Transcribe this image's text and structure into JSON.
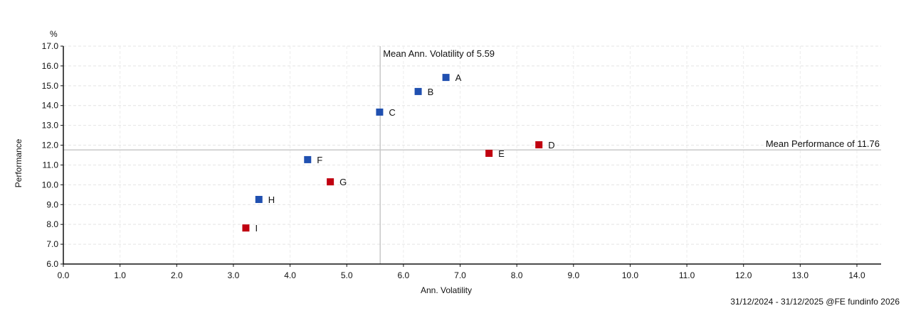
{
  "chart_data": {
    "type": "scatter",
    "title": "",
    "xlabel": "Ann. Volatility",
    "ylabel": "Performance",
    "y_unit": "%",
    "xlim": [
      0,
      14.4
    ],
    "ylim": [
      6,
      17
    ],
    "x_ticks": [
      "0.0",
      "1.0",
      "2.0",
      "3.0",
      "4.0",
      "5.0",
      "6.0",
      "7.0",
      "8.0",
      "9.0",
      "10.0",
      "11.0",
      "12.0",
      "13.0",
      "14.0"
    ],
    "y_ticks": [
      "6.0",
      "7.0",
      "8.0",
      "9.0",
      "10.0",
      "11.0",
      "12.0",
      "13.0",
      "14.0",
      "15.0",
      "16.0",
      "17.0"
    ],
    "grid": true,
    "points": [
      {
        "label": "A",
        "x": 6.75,
        "y": 15.42,
        "color": "#2050b0"
      },
      {
        "label": "B",
        "x": 6.26,
        "y": 14.71,
        "color": "#2050b0"
      },
      {
        "label": "C",
        "x": 5.58,
        "y": 13.67,
        "color": "#2050b0"
      },
      {
        "label": "D",
        "x": 8.39,
        "y": 12.02,
        "color": "#c00010"
      },
      {
        "label": "E",
        "x": 7.51,
        "y": 11.59,
        "color": "#c00010"
      },
      {
        "label": "F",
        "x": 4.31,
        "y": 11.27,
        "color": "#2050b0"
      },
      {
        "label": "G",
        "x": 4.71,
        "y": 10.15,
        "color": "#c00010"
      },
      {
        "label": "H",
        "x": 3.45,
        "y": 9.26,
        "color": "#2050b0"
      },
      {
        "label": "I",
        "x": 3.22,
        "y": 7.82,
        "color": "#c00010"
      }
    ],
    "mean_volatility": 5.59,
    "mean_performance": 11.76,
    "annotations": {
      "mean_volatility_label": "Mean Ann. Volatility of 5.59",
      "mean_performance_label": "Mean Performance of 11.76"
    }
  },
  "footer": "31/12/2024 - 31/12/2025 @FE fundinfo 2026"
}
